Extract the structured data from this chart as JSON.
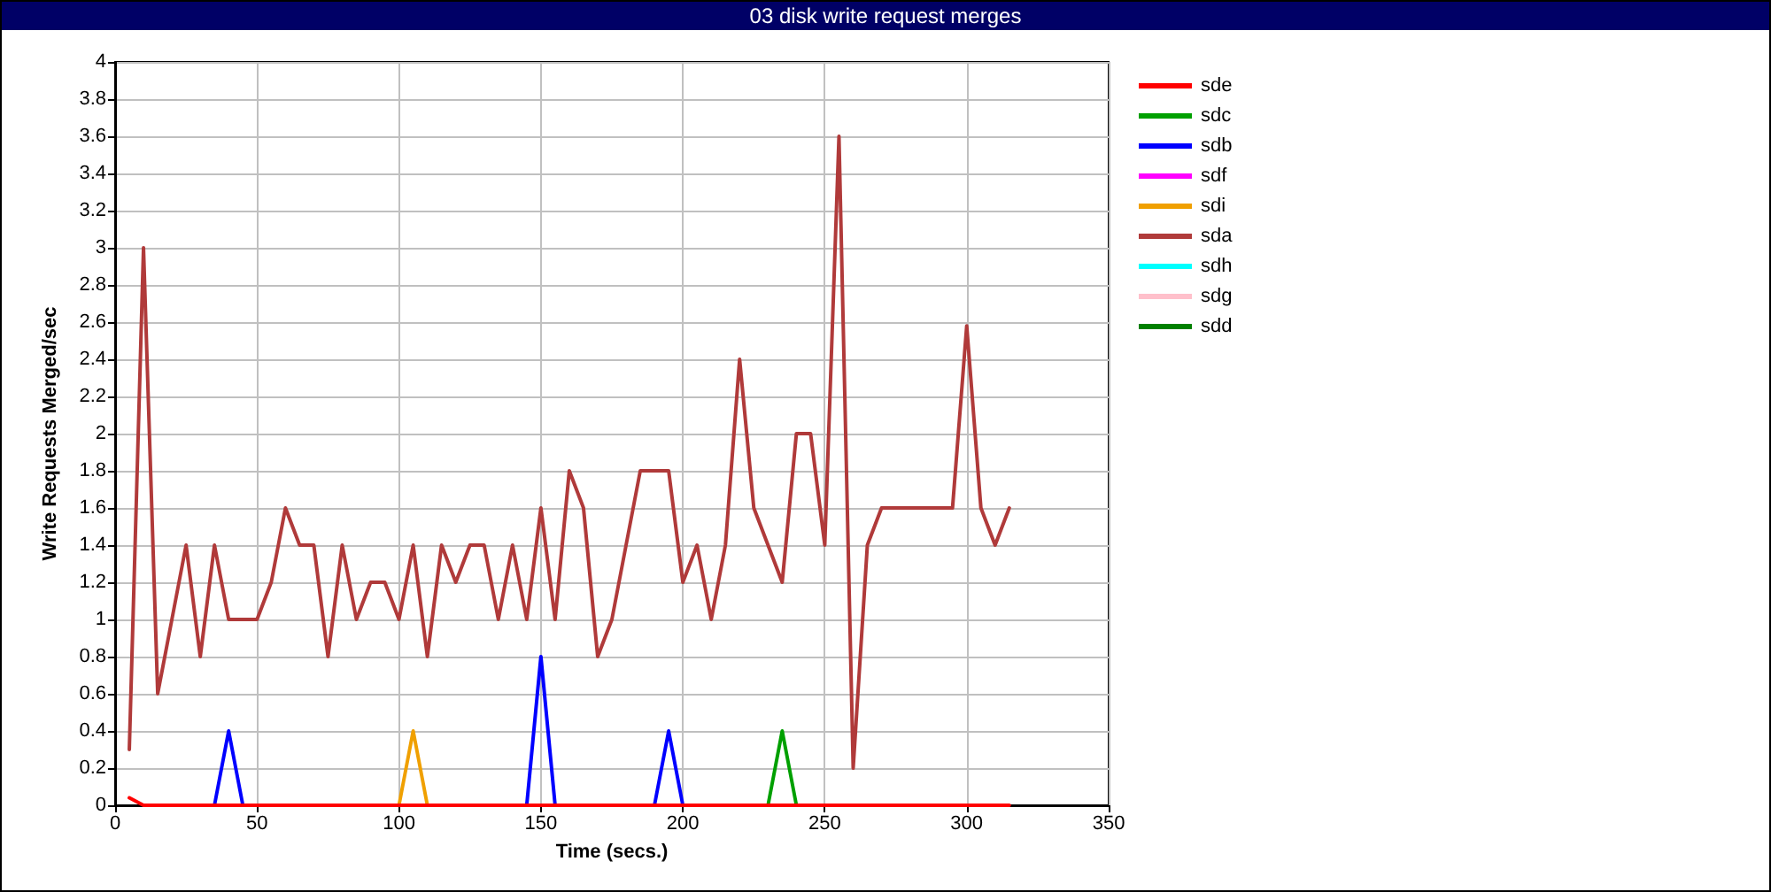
{
  "chart_data": {
    "type": "line",
    "title": "03 disk write request merges",
    "xlabel": "Time (secs.)",
    "ylabel": "Write Requests Merged/sec",
    "x": [
      5,
      10,
      15,
      20,
      25,
      30,
      35,
      40,
      45,
      50,
      55,
      60,
      65,
      70,
      75,
      80,
      85,
      90,
      95,
      100,
      105,
      110,
      115,
      120,
      125,
      130,
      135,
      140,
      145,
      150,
      155,
      160,
      165,
      170,
      175,
      180,
      185,
      190,
      195,
      200,
      205,
      210,
      215,
      220,
      225,
      230,
      235,
      240,
      245,
      250,
      255,
      260,
      265,
      270,
      275,
      280,
      285,
      290,
      295,
      300,
      305,
      310,
      315
    ],
    "xlim": [
      0,
      350
    ],
    "xticks": [
      0,
      50,
      100,
      150,
      200,
      250,
      300,
      350
    ],
    "ylim": [
      0,
      4
    ],
    "yticks": [
      0,
      0.2,
      0.4,
      0.6,
      0.8,
      1,
      1.2,
      1.4,
      1.6,
      1.8,
      2,
      2.2,
      2.4,
      2.6,
      2.8,
      3,
      3.2,
      3.4,
      3.6,
      3.8,
      4
    ],
    "grid": true,
    "legend": "right",
    "marker": "none",
    "line_style": "solid",
    "series": [
      {
        "name": "sde",
        "color": "#ff0000",
        "values": [
          0.04,
          0,
          0,
          0,
          0,
          0,
          0,
          0,
          0,
          0,
          0,
          0,
          0,
          0,
          0,
          0,
          0,
          0,
          0,
          0,
          0,
          0,
          0,
          0,
          0,
          0,
          0,
          0,
          0,
          0,
          0,
          0,
          0,
          0,
          0,
          0,
          0,
          0,
          0,
          0,
          0,
          0,
          0,
          0,
          0,
          0,
          0,
          0,
          0,
          0,
          0,
          0,
          0,
          0,
          0,
          0,
          0,
          0,
          0,
          0,
          0,
          0,
          0
        ]
      },
      {
        "name": "sdc",
        "color": "#00a000",
        "values": [
          null,
          null,
          null,
          null,
          null,
          null,
          null,
          null,
          null,
          null,
          null,
          null,
          null,
          null,
          null,
          null,
          null,
          null,
          null,
          null,
          null,
          null,
          null,
          null,
          null,
          null,
          null,
          null,
          null,
          null,
          null,
          null,
          null,
          null,
          null,
          null,
          null,
          null,
          null,
          null,
          null,
          null,
          null,
          null,
          null,
          0,
          0.4,
          0,
          null,
          null,
          null,
          null,
          null,
          null,
          null,
          null,
          null,
          null,
          null,
          null,
          null,
          null,
          null
        ]
      },
      {
        "name": "sdb",
        "color": "#0000ff",
        "values": [
          null,
          null,
          null,
          null,
          null,
          null,
          0,
          0.4,
          0,
          null,
          null,
          null,
          null,
          null,
          null,
          null,
          null,
          null,
          null,
          null,
          null,
          null,
          null,
          null,
          null,
          null,
          null,
          null,
          0,
          0.8,
          0,
          null,
          null,
          null,
          null,
          null,
          null,
          0,
          0.4,
          0,
          null,
          null,
          null,
          null,
          null,
          null,
          null,
          null,
          null,
          null,
          null,
          null,
          null,
          null,
          null,
          null,
          null,
          null,
          null,
          null,
          null,
          null,
          null
        ]
      },
      {
        "name": "sdf",
        "color": "#ff00ff",
        "values": [
          null,
          null,
          null,
          null,
          null,
          null,
          null,
          null,
          null,
          null,
          null,
          null,
          null,
          null,
          null,
          null,
          null,
          null,
          null,
          null,
          null,
          null,
          null,
          null,
          null,
          null,
          null,
          null,
          null,
          null,
          null,
          null,
          null,
          null,
          null,
          null,
          null,
          null,
          null,
          null,
          null,
          null,
          null,
          null,
          null,
          null,
          null,
          null,
          null,
          null,
          null,
          null,
          null,
          null,
          null,
          null,
          null,
          null,
          null,
          null,
          null,
          null,
          null
        ]
      },
      {
        "name": "sdi",
        "color": "#f0a000",
        "values": [
          null,
          null,
          null,
          null,
          null,
          null,
          null,
          null,
          null,
          null,
          null,
          null,
          null,
          null,
          null,
          null,
          null,
          null,
          null,
          0,
          0.4,
          0,
          null,
          null,
          null,
          null,
          null,
          null,
          null,
          null,
          null,
          null,
          null,
          null,
          null,
          null,
          null,
          null,
          null,
          null,
          null,
          null,
          null,
          null,
          null,
          null,
          null,
          null,
          null,
          null,
          null,
          null,
          null,
          null,
          null,
          null,
          null,
          null,
          null,
          null,
          null,
          null,
          null
        ]
      },
      {
        "name": "sda",
        "color": "#b03a3a",
        "values": [
          0.3,
          3,
          0.6,
          1,
          1.4,
          0.8,
          1.4,
          1,
          1,
          1,
          1.2,
          1.6,
          1.4,
          1.4,
          0.8,
          1.4,
          1,
          1.2,
          1.2,
          1,
          1.4,
          0.8,
          1.4,
          1.2,
          1.4,
          1.4,
          1,
          1.4,
          1,
          1.6,
          1,
          1.8,
          1.6,
          0.8,
          1,
          1.4,
          1.8,
          1.8,
          1.8,
          1.2,
          1.4,
          1,
          1.4,
          2.4,
          1.6,
          1.4,
          1.2,
          2,
          2,
          1.4,
          3.6,
          0.2,
          1.4,
          1.6,
          1.6,
          1.6,
          1.6,
          1.6,
          1.6,
          2.58,
          1.6,
          1.4,
          1.6
        ]
      },
      {
        "name": "sdh",
        "color": "#00ffff",
        "values": [
          null,
          null,
          null,
          null,
          null,
          null,
          null,
          null,
          null,
          null,
          null,
          null,
          null,
          null,
          null,
          null,
          null,
          null,
          null,
          null,
          null,
          null,
          null,
          null,
          null,
          null,
          null,
          null,
          null,
          null,
          null,
          null,
          null,
          null,
          null,
          null,
          null,
          null,
          null,
          null,
          null,
          null,
          null,
          null,
          null,
          null,
          null,
          null,
          null,
          null,
          null,
          null,
          null,
          null,
          null,
          null,
          null,
          null,
          null,
          null,
          null,
          null,
          null
        ]
      },
      {
        "name": "sdg",
        "color": "#ffc0cb",
        "values": [
          null,
          null,
          null,
          null,
          null,
          null,
          null,
          null,
          null,
          null,
          null,
          null,
          null,
          null,
          null,
          null,
          null,
          null,
          null,
          null,
          null,
          null,
          null,
          null,
          null,
          null,
          null,
          null,
          null,
          null,
          null,
          null,
          null,
          null,
          null,
          null,
          null,
          null,
          null,
          null,
          null,
          null,
          null,
          null,
          null,
          null,
          null,
          null,
          null,
          null,
          null,
          null,
          null,
          null,
          null,
          null,
          null,
          null,
          null,
          null,
          null,
          null,
          null
        ]
      },
      {
        "name": "sdd",
        "color": "#008000",
        "values": [
          null,
          null,
          null,
          null,
          null,
          null,
          null,
          null,
          null,
          null,
          null,
          null,
          null,
          null,
          null,
          null,
          null,
          null,
          null,
          null,
          null,
          null,
          null,
          null,
          null,
          null,
          null,
          null,
          null,
          null,
          null,
          null,
          null,
          null,
          null,
          null,
          null,
          null,
          null,
          null,
          null,
          null,
          null,
          null,
          null,
          null,
          null,
          null,
          null,
          null,
          null,
          null,
          null,
          null,
          null,
          null,
          null,
          null,
          null,
          null,
          null,
          null,
          null
        ]
      }
    ]
  }
}
